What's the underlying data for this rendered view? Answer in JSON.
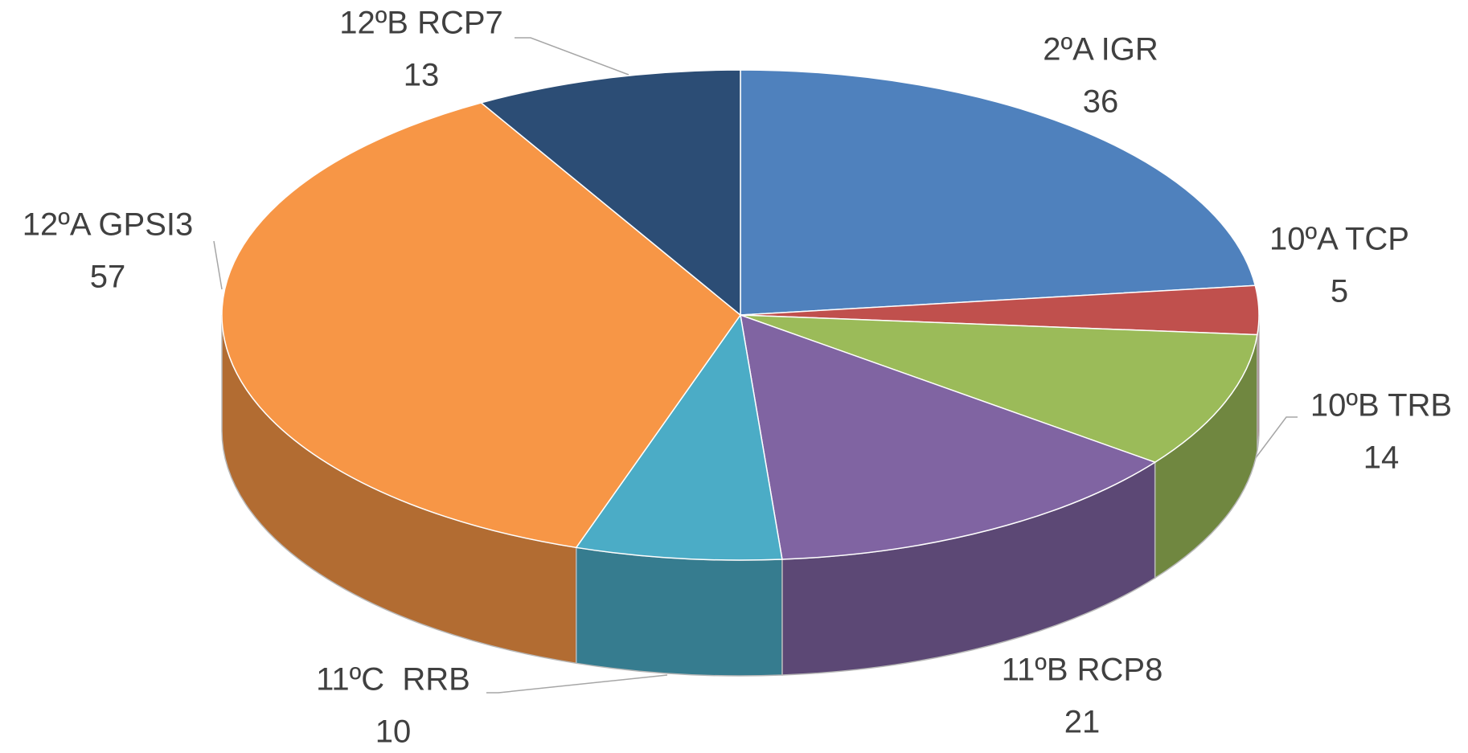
{
  "chart_data": {
    "type": "pie",
    "categories": [
      "2ºA IGR",
      "10ºA TCP",
      "10ºB TRB",
      "11ºB RCP8",
      "11ºC  RRB",
      "12ºA GPSI3",
      "12ºB RCP7"
    ],
    "values": [
      36,
      5,
      14,
      21,
      10,
      57,
      13
    ],
    "colors": [
      "#4f81bd",
      "#c0504d",
      "#9bbb59",
      "#8064a2",
      "#4bacc6",
      "#f79646",
      "#2c4d75"
    ]
  }
}
